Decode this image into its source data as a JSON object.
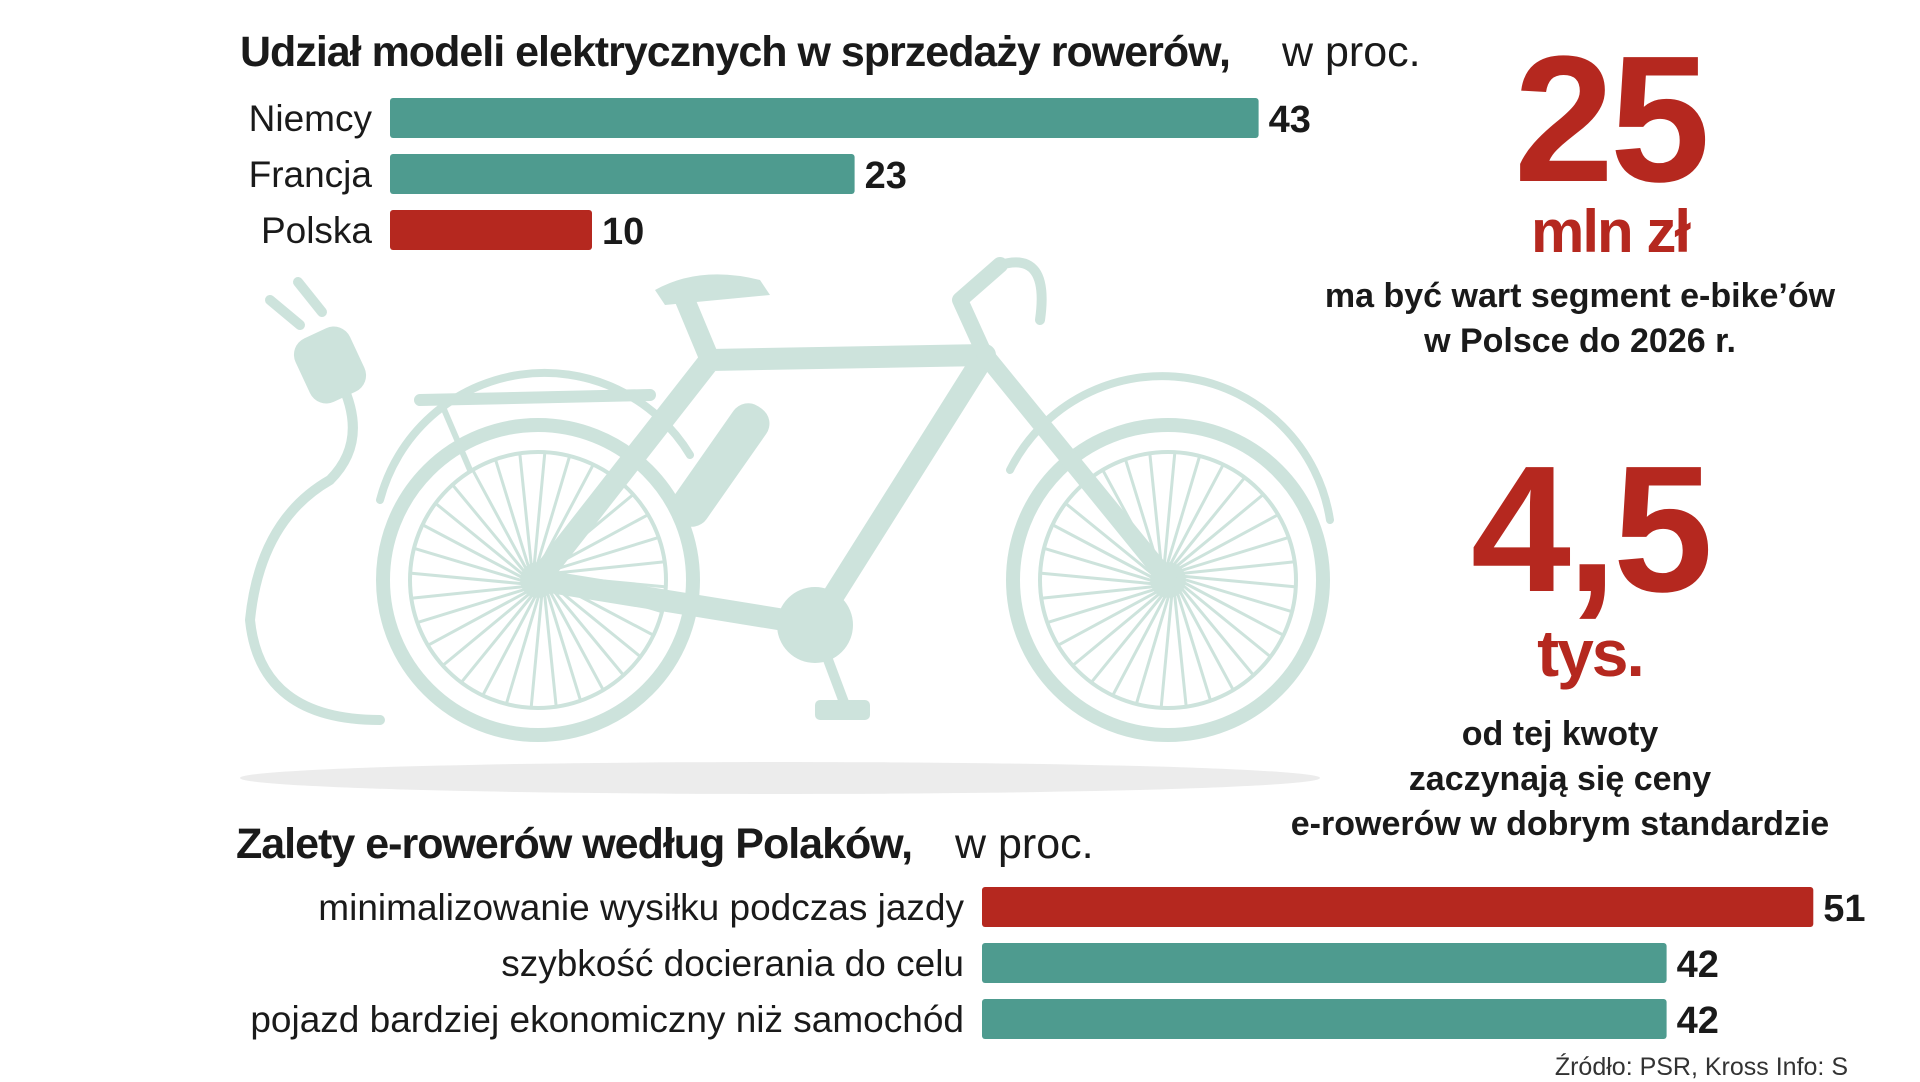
{
  "chart_data": [
    {
      "type": "bar",
      "orientation": "horizontal",
      "title": "Udział modeli elektrycznych w sprzedaży rowerów,",
      "title_suffix": "w proc.",
      "categories": [
        "Niemcy",
        "Francja",
        "Polska"
      ],
      "values": [
        43,
        23,
        10
      ],
      "value_labels": [
        "43",
        "23",
        "10"
      ],
      "highlight": "Polska"
    },
    {
      "type": "bar",
      "orientation": "horizontal",
      "title": "Zalety e-rowerów według Polaków,",
      "title_suffix": "w proc.",
      "categories": [
        "minimalizowanie wysiłku podczas jazdy",
        "szybkość docierania do celu",
        "pojazd bardziej ekonomiczny niż samochód"
      ],
      "values": [
        51,
        42,
        42
      ],
      "value_labels": [
        "51",
        "42",
        "42"
      ],
      "highlight": "minimalizowanie wysiłku podczas jazdy"
    }
  ],
  "stats": [
    {
      "value": "25",
      "unit": "mln zł",
      "description_lines": [
        "ma być wart segment e-bike’ów",
        "w Polsce do 2026 r."
      ]
    },
    {
      "value": "4,5",
      "unit": "tys.",
      "description_lines": [
        "od tej kwoty",
        "zaczynają się ceny",
        "e-rowerów w dobrym standardzie"
      ]
    }
  ],
  "source": "Źródło: PSR, Kross  Info: S",
  "colors": {
    "teal": "#4e9b8f",
    "red": "#b5281f",
    "illustration": "#cde3dc",
    "text": "#1a1a1a"
  },
  "illustration": "electric-bicycle-with-plug-icon"
}
